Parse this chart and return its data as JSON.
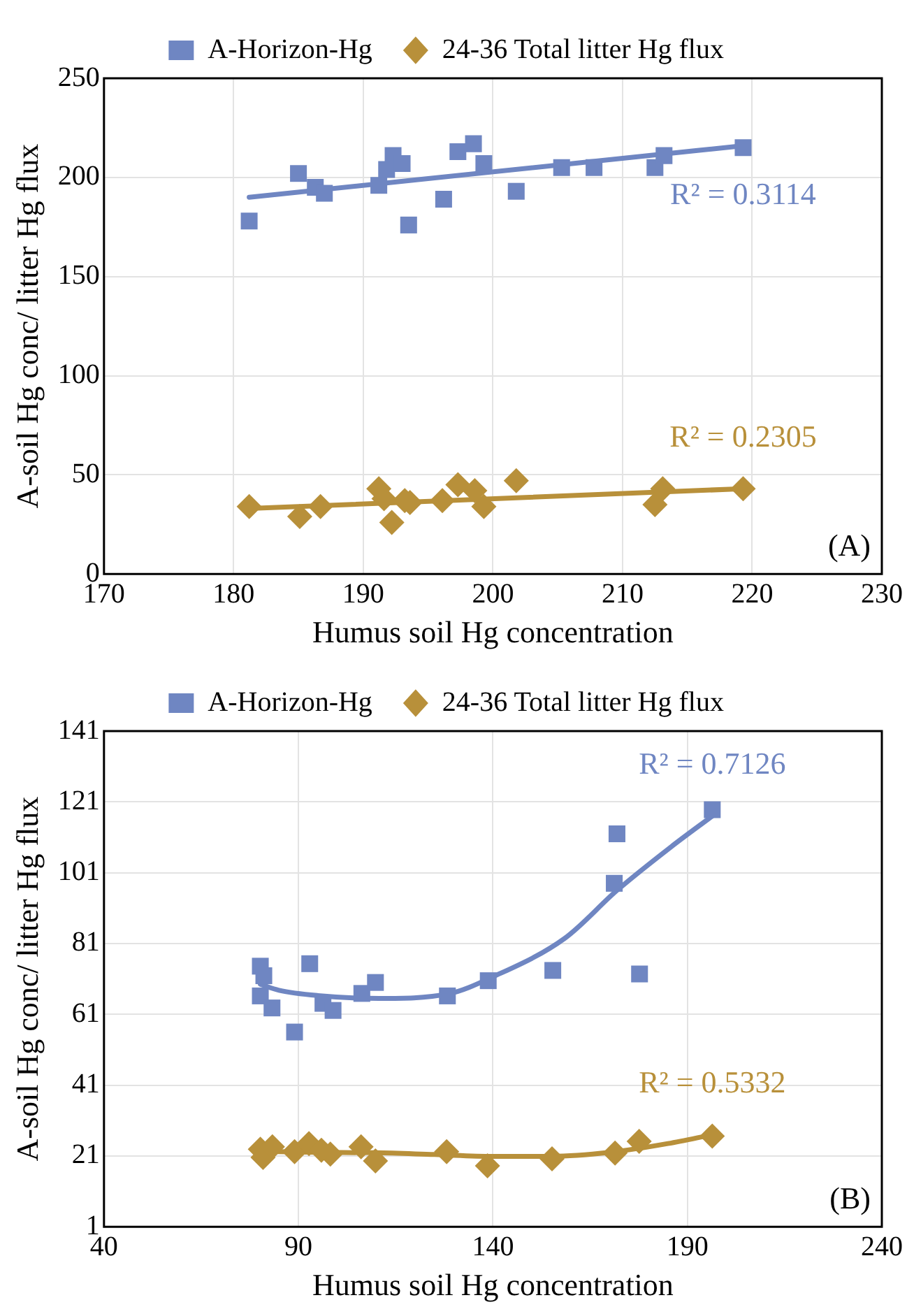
{
  "chart_data": [
    {
      "type": "scatter",
      "xlabel": "Humus soil Hg concentration",
      "ylabel": "A-soil Hg conc/ litter Hg flux",
      "xlim": [
        170,
        230
      ],
      "xticks": [
        170,
        180,
        190,
        200,
        210,
        220,
        230
      ],
      "ylim": [
        0,
        250
      ],
      "yticks": [
        0,
        50,
        100,
        150,
        200,
        250
      ],
      "grid": true,
      "legend": "top",
      "series": [
        {
          "name": "A-Horizon-Hg",
          "color": "#6f86c2",
          "marker": "square",
          "x": [
            181.2,
            185,
            186.3,
            187,
            191.2,
            191.8,
            192.3,
            193,
            193.5,
            196.2,
            197.3,
            198.5,
            199.3,
            201.8,
            205.3,
            207.8,
            212.5,
            213.2,
            219.3
          ],
          "values": [
            178,
            202,
            195,
            192,
            196,
            204,
            211,
            207,
            176,
            189,
            213,
            217,
            207,
            193,
            205,
            205,
            205,
            211,
            215
          ]
        },
        {
          "name": "24-36 Total litter Hg flux",
          "color": "#b8903a",
          "marker": "diamond",
          "x": [
            181.2,
            185.1,
            186.7,
            191.2,
            191.6,
            192.2,
            193.2,
            193.6,
            196.1,
            197.3,
            198.6,
            199.3,
            201.8,
            212.5,
            213.1,
            219.3
          ],
          "values": [
            34,
            29,
            34,
            43,
            38,
            26,
            37,
            36,
            37,
            45,
            42,
            34,
            47,
            35,
            43,
            43
          ]
        },
        {
          "type": "line",
          "color": "#6f86c2",
          "marker": "none",
          "x": [
            181.2,
            219.3
          ],
          "values": [
            190,
            216
          ]
        },
        {
          "type": "line",
          "color": "#b8903a",
          "marker": "none",
          "x": [
            181.2,
            219.3
          ],
          "values": [
            33,
            43
          ]
        }
      ],
      "annotations": [
        "R² = 0.3114",
        "R² = 0.2305",
        "(A)"
      ]
    },
    {
      "type": "scatter",
      "xlabel": "Humus soil Hg concentration",
      "ylabel": "A-soil Hg conc/ litter Hg flux",
      "xlim": [
        40,
        240
      ],
      "xticks": [
        40,
        90,
        140,
        190,
        240
      ],
      "ylim": [
        1,
        141
      ],
      "yticks": [
        1,
        21,
        41,
        61,
        81,
        101,
        121,
        141
      ],
      "grid": true,
      "legend": "top",
      "series": [
        {
          "name": "A-Horizon-Hg",
          "color": "#6f86c2",
          "marker": "square",
          "x": [
            80.2,
            81.1,
            80.2,
            83.2,
            89,
            92.9,
            96.3,
            98.9,
            106.3,
            109.8,
            128.3,
            138.8,
            155.4,
            171.9,
            171.2,
            177.7,
            196.4
          ],
          "values": [
            74.6,
            71.9,
            66.2,
            62.8,
            56,
            75.3,
            64.1,
            62.1,
            66.9,
            70,
            66.2,
            70.5,
            73.4,
            112,
            98,
            72.4,
            118.8
          ]
        },
        {
          "name": "24-36 Total litter Hg flux",
          "color": "#b8903a",
          "marker": "diamond",
          "x": [
            80.2,
            80.9,
            83.3,
            89,
            92.7,
            95.9,
            98.2,
            106.1,
            109.8,
            128.1,
            138.6,
            155.2,
            171.4,
            177.6,
            196.4
          ],
          "values": [
            22.9,
            20.6,
            23.6,
            22.2,
            24.5,
            22.6,
            21.5,
            23.6,
            19.6,
            22.2,
            18.2,
            20.2,
            21.8,
            25.1,
            26.6
          ]
        },
        {
          "type": "line",
          "color": "#6f86c2",
          "marker": "none",
          "x": [
            80.2,
            85,
            95,
            110.8,
            128.6,
            140,
            158.5,
            172,
            185.8,
            196.4
          ],
          "values": [
            69.5,
            67.8,
            66.3,
            65.5,
            66.8,
            71.6,
            82.5,
            96.1,
            108.3,
            117
          ]
        },
        {
          "type": "line",
          "color": "#b8903a",
          "marker": "none",
          "x": [
            80.2,
            95,
            110,
            125,
            140,
            155,
            170,
            185,
            196.4
          ],
          "values": [
            22.3,
            22,
            21.9,
            21.4,
            20.9,
            20.9,
            22,
            24.5,
            27
          ]
        }
      ],
      "annotations": [
        "R² = 0.7126",
        "R² = 0.5332",
        "(B)"
      ]
    }
  ]
}
